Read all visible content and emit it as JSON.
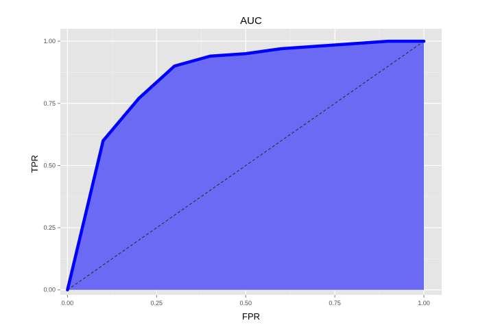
{
  "chart_data": {
    "type": "area",
    "title": "AUC",
    "xlabel": "FPR",
    "ylabel": "TPR",
    "xlim": [
      -0.02,
      1.05
    ],
    "ylim": [
      -0.02,
      1.05
    ],
    "x_ticks": [
      {
        "value": 0,
        "label": "0.00"
      },
      {
        "value": 0.25,
        "label": "0.25"
      },
      {
        "value": 0.5,
        "label": "0.50"
      },
      {
        "value": 0.75,
        "label": "0.75"
      },
      {
        "value": 1,
        "label": "1.00"
      }
    ],
    "y_ticks": [
      {
        "value": 0,
        "label": "0.00"
      },
      {
        "value": 0.25,
        "label": "0.25"
      },
      {
        "value": 0.5,
        "label": "0.50"
      },
      {
        "value": 0.75,
        "label": "0.75"
      },
      {
        "value": 1,
        "label": "1.00"
      }
    ],
    "series": [
      {
        "points": [
          {
            "x": 0.0,
            "y": 0.0
          },
          {
            "x": 0.1,
            "y": 0.6
          },
          {
            "x": 0.2,
            "y": 0.77
          },
          {
            "x": 0.3,
            "y": 0.9
          },
          {
            "x": 0.4,
            "y": 0.94
          },
          {
            "x": 0.5,
            "y": 0.95
          },
          {
            "x": 0.6,
            "y": 0.97
          },
          {
            "x": 0.7,
            "y": 0.98
          },
          {
            "x": 0.8,
            "y": 0.99
          },
          {
            "x": 0.9,
            "y": 1.0
          },
          {
            "x": 1.0,
            "y": 1.0
          }
        ]
      }
    ],
    "reference_line": {
      "from": [
        0,
        0
      ],
      "to": [
        1,
        1
      ],
      "style": "dashed"
    },
    "grid": true,
    "colors": {
      "panel_background": "#e5e5e5",
      "grid_major": "#ffffff",
      "grid_minor": "#f2f2f2",
      "area_fill": "#6a6af4",
      "line": "#0000ff",
      "reference_line": "#333333"
    }
  }
}
